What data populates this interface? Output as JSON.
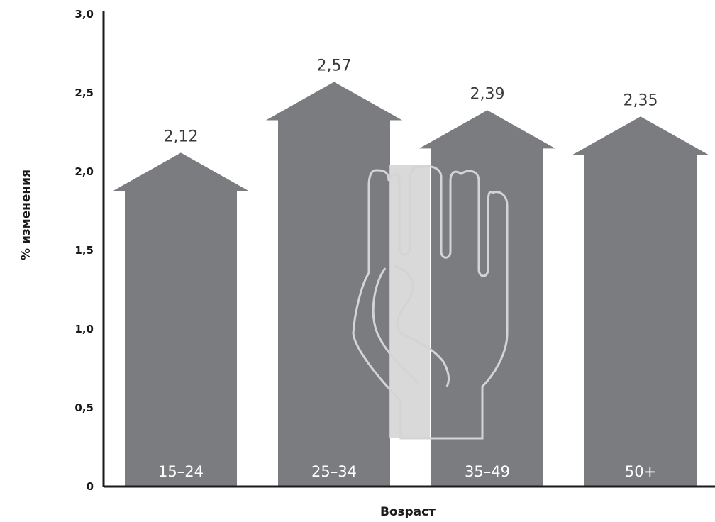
{
  "chart_data": {
    "type": "bar",
    "categories": [
      "15–24",
      "25–34",
      "35–49",
      "50+"
    ],
    "values": [
      2.12,
      2.57,
      2.39,
      2.35
    ],
    "value_labels": [
      "2,12",
      "2,57",
      "2,39",
      "2,35"
    ],
    "xlabel": "Возраст",
    "ylabel": "% изменения",
    "ylim": [
      0,
      3.0
    ],
    "yticks": [
      0,
      0.5,
      1.0,
      1.5,
      2.0,
      2.5,
      3.0
    ],
    "ytick_labels": [
      "0",
      "0,5",
      "1,0",
      "1,5",
      "2,0",
      "2,5",
      "3,0"
    ],
    "grid": false,
    "legend": "none",
    "bar_shape": "arrow-up",
    "colors": {
      "bar": "#7b7c7f",
      "overlay": "#c3c3c3",
      "axis": "#1a1a1a"
    }
  },
  "decoration": {
    "icon": "raised-hand-icon"
  }
}
